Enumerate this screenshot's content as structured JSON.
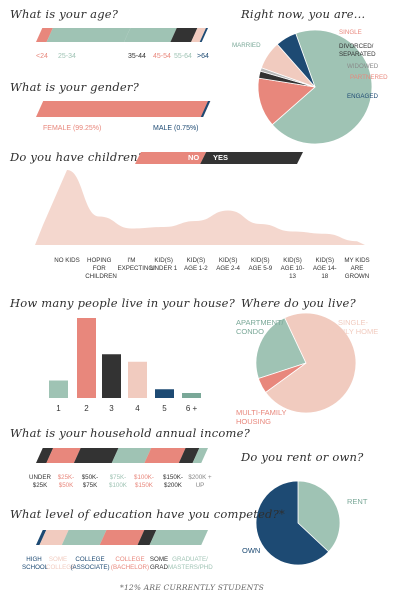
{
  "colors": {
    "salmon": "#e8877c",
    "mint": "#9fc3b4",
    "dark": "#333333",
    "navy": "#1d4a73",
    "peach": "#f1cbbf",
    "pale_peach": "#f4d7ce"
  },
  "age": {
    "question": "What is your age?",
    "labels": [
      "<24",
      "25-34",
      "35-44",
      "45-54",
      "55-64",
      ">64"
    ]
  },
  "relationship": {
    "question": "Right now, you are...",
    "labels": [
      "MARRIED",
      "SINGLE",
      "DIVORCED/ SEPARATED",
      "WIDOWED",
      "PARTNERED",
      "ENGAGED"
    ]
  },
  "gender": {
    "question": "What is your gender?",
    "female": "FEMALE (99.25%)",
    "male": "MALE (0.75%)"
  },
  "children_toggle": {
    "question": "Do you have children?",
    "no": "NO",
    "yes": "YES"
  },
  "children_labels": [
    "NO KIDS",
    "HOPING FOR CHILDREN",
    "I'M EXPECTING!",
    "KID(S) UNDER 1",
    "KID(S) AGE 1-2",
    "KID(S) AGE 2-4",
    "KID(S) AGE 5-9",
    "KID(S) AGE 10-13",
    "KID(S) AGE 14-18",
    "MY KIDS ARE GROWN"
  ],
  "household": {
    "question": "How many people live in your house?"
  },
  "location": {
    "question": "Where do you live?",
    "labels": [
      "APARTMENT/ CONDO",
      "SINGLE-FAMILY HOME",
      "MULTI-FAMILY HOUSING"
    ]
  },
  "income": {
    "question": "What is your household annual income?",
    "labels": [
      "UNDER $25K",
      "$25K- $50K",
      "$50K- $75K",
      "$75K- $100K",
      "$100K- $150K",
      "$150K- $200K",
      "$200K + UP"
    ]
  },
  "rent": {
    "question": "Do you rent or own?",
    "labels": [
      "RENT",
      "OWN"
    ]
  },
  "education": {
    "question": "What level of education have you competed?*",
    "labels": [
      "HIGH SCHOOL",
      "SOME COLLEGE",
      "COLLEGE (ASSOCIATE)",
      "COLLEGE (BACHELOR)",
      "SOME GRAD",
      "GRADUATE/ MASTERS/PHD"
    ]
  },
  "footnote": "*12% ARE CURRENTLY STUDENTS",
  "chart_data": [
    {
      "type": "bar",
      "title": "What is your age?",
      "categories": [
        "<24",
        "25-34",
        "35-44",
        "45-54",
        "55-64",
        ">64"
      ],
      "values": [
        8,
        45,
        27,
        12,
        5,
        3
      ],
      "stacked": true
    },
    {
      "type": "pie",
      "title": "Right now, you are...",
      "categories": [
        "MARRIED",
        "SINGLE",
        "DIVORCED/ SEPARATED",
        "WIDOWED",
        "PARTNERED",
        "ENGAGED"
      ],
      "values": [
        69,
        14,
        2,
        1,
        8,
        6
      ]
    },
    {
      "type": "bar",
      "title": "What is your gender?",
      "categories": [
        "FEMALE (99.25%)",
        "MALE (0.75%)"
      ],
      "values": [
        99.25,
        0.75
      ],
      "stacked": true
    },
    {
      "type": "bar",
      "title": "Do you have children?",
      "categories": [
        "NO",
        "YES"
      ],
      "values": [
        40,
        60
      ],
      "stacked": true
    },
    {
      "type": "area",
      "x": [
        "NO KIDS",
        "HOPING FOR CHILDREN",
        "I'M EXPECTING!",
        "KID(S) UNDER 1",
        "KID(S) AGE 1-2",
        "KID(S) AGE 2-4",
        "KID(S) AGE 5-9",
        "KID(S) AGE 10-13",
        "KID(S) AGE 14-18",
        "MY KIDS ARE GROWN"
      ],
      "values": [
        100,
        38,
        22,
        24,
        32,
        46,
        28,
        18,
        15,
        5
      ]
    },
    {
      "type": "bar",
      "title": "How many people live in your house?",
      "categories": [
        "1",
        "2",
        "3",
        "4",
        "5",
        "6 +"
      ],
      "values": [
        14,
        64,
        35,
        29,
        7,
        4
      ]
    },
    {
      "type": "pie",
      "title": "Where do you live?",
      "categories": [
        "APARTMENT/ CONDO",
        "SINGLE-FAMILY HOME",
        "MULTI-FAMILY HOUSING"
      ],
      "values": [
        23,
        72,
        5
      ]
    },
    {
      "type": "bar",
      "title": "What is your household annual income?",
      "categories": [
        "UNDER $25K",
        "$25K- $50K",
        "$50K- $75K",
        "$75K- $100K",
        "$100K- $150K",
        "$150K- $200K",
        "$200K + UP"
      ],
      "values": [
        8,
        16,
        22,
        19,
        20,
        8,
        7
      ],
      "stacked": true
    },
    {
      "type": "pie",
      "title": "Do you rent or own?",
      "categories": [
        "RENT",
        "OWN"
      ],
      "values": [
        37,
        63
      ]
    },
    {
      "type": "bar",
      "title": "What level of education have you competed?*",
      "categories": [
        "HIGH SCHOOL",
        "SOME COLLEGE",
        "COLLEGE (ASSOCIATE)",
        "COLLEGE (BACHELOR)",
        "SOME GRAD",
        "GRADUATE/ MASTERS/PHD"
      ],
      "values": [
        4,
        13,
        22,
        22,
        7,
        32
      ],
      "stacked": true
    }
  ]
}
